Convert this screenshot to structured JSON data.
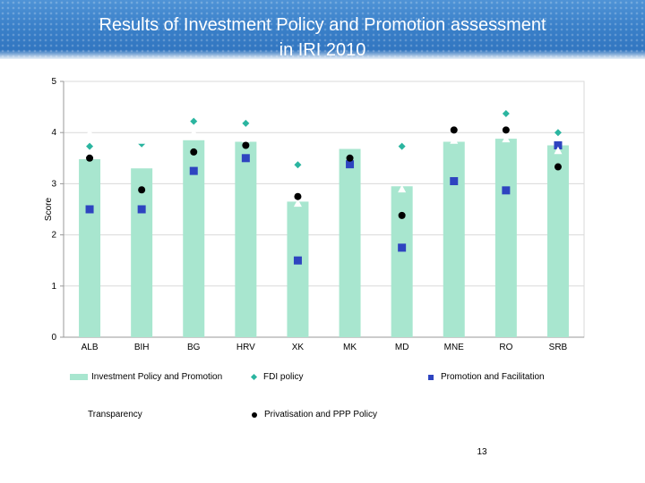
{
  "title_line1": "Results of Investment Policy and Promotion assessment",
  "title_line2": "in IRI 2010",
  "page_number": "13",
  "colors": {
    "bar": "#a8e6cf",
    "fdi": "#2bb5a0",
    "promotion": "#2e44c0",
    "transparency": "#ffffff",
    "privatisation": "#000000"
  },
  "chart_data": {
    "type": "bar",
    "ylabel": "Score",
    "ylim": [
      0,
      5
    ],
    "yticks": [
      "0",
      "1",
      "2",
      "3",
      "4",
      "5"
    ],
    "categories": [
      "ALB",
      "BIH",
      "BG",
      "HRV",
      "XK",
      "MK",
      "MD",
      "MNE",
      "RO",
      "SRB"
    ],
    "bar_series": {
      "name": "Investment Policy and Promotion",
      "values": [
        3.48,
        3.3,
        3.85,
        3.82,
        2.65,
        3.68,
        2.95,
        3.82,
        3.88,
        3.75
      ]
    },
    "point_series": [
      {
        "name": "FDI policy",
        "marker": "diamond",
        "values": [
          3.73,
          3.78,
          4.22,
          4.18,
          3.37,
          null,
          3.73,
          null,
          4.37,
          4.0
        ]
      },
      {
        "name": "Promotion and Facilitation",
        "marker": "square",
        "values": [
          2.5,
          2.5,
          3.25,
          3.5,
          1.5,
          3.38,
          1.75,
          3.05,
          2.87,
          3.75
        ]
      },
      {
        "name": "Transparency",
        "marker": "triangle",
        "values": [
          4.0,
          3.85,
          4.0,
          3.88,
          2.62,
          3.82,
          2.9,
          3.85,
          3.88,
          3.65
        ]
      },
      {
        "name": "Privatisation and PPP Policy",
        "marker": "circle",
        "values": [
          3.5,
          2.88,
          3.62,
          3.75,
          2.75,
          3.5,
          2.38,
          4.05,
          4.05,
          3.33
        ]
      }
    ],
    "legend": [
      "Investment Policy and Promotion",
      "FDI policy",
      "Promotion and Facilitation",
      "Transparency",
      "Privatisation and PPP Policy"
    ],
    "grid": true,
    "legend_position": "bottom"
  }
}
